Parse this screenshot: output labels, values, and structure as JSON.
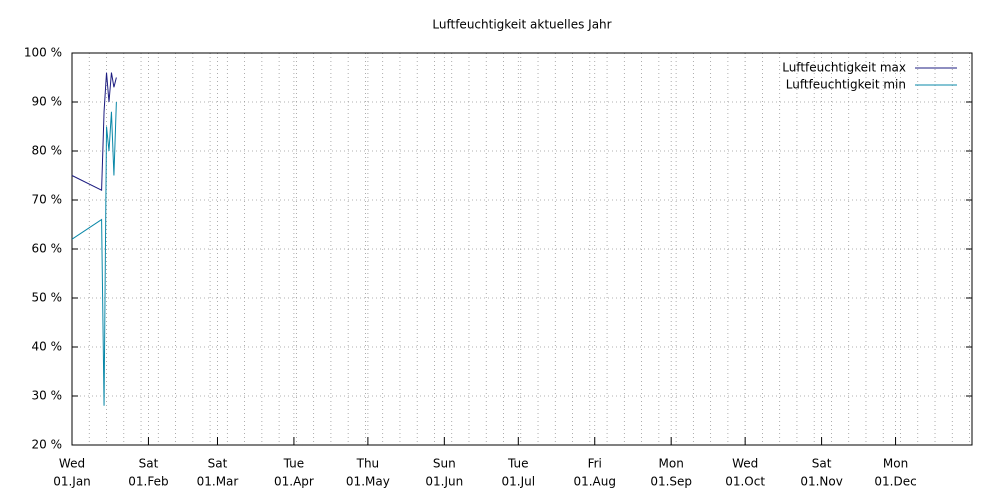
{
  "chart_data": {
    "type": "line",
    "title": "Luftfeuchtigkeit aktuelles Jahr",
    "x": [
      "2025-01-01",
      "2025-01-13",
      "2025-01-14",
      "2025-01-15",
      "2025-01-16",
      "2025-01-17",
      "2025-01-18",
      "2025-01-19"
    ],
    "series": [
      {
        "name": "Luftfeuchtigkeit max",
        "color": "#1c1c80",
        "values": [
          75,
          72,
          88,
          96,
          90,
          96,
          93,
          95
        ]
      },
      {
        "name": "Luftfeuchtigkeit min",
        "color": "#0a88a8",
        "values": [
          62,
          66,
          28,
          85,
          80,
          88,
          75,
          90
        ]
      }
    ],
    "xlim": [
      "2025-01-01",
      "2026-01-01"
    ],
    "xticks": [
      {
        "value": "2025-01-01",
        "label": [
          "Wed",
          "01.Jan"
        ]
      },
      {
        "value": "2025-02-01",
        "label": [
          "Sat",
          "01.Feb"
        ]
      },
      {
        "value": "2025-03-01",
        "label": [
          "Sat",
          "01.Mar"
        ]
      },
      {
        "value": "2025-04-01",
        "label": [
          "Tue",
          "01.Apr"
        ]
      },
      {
        "value": "2025-05-01",
        "label": [
          "Thu",
          "01.May"
        ]
      },
      {
        "value": "2025-06-01",
        "label": [
          "Sun",
          "01.Jun"
        ]
      },
      {
        "value": "2025-07-01",
        "label": [
          "Tue",
          "01.Jul"
        ]
      },
      {
        "value": "2025-08-01",
        "label": [
          "Fri",
          "01.Aug"
        ]
      },
      {
        "value": "2025-09-01",
        "label": [
          "Mon",
          "01.Sep"
        ]
      },
      {
        "value": "2025-10-01",
        "label": [
          "Wed",
          "01.Oct"
        ]
      },
      {
        "value": "2025-11-01",
        "label": [
          "Sat",
          "01.Nov"
        ]
      },
      {
        "value": "2025-12-01",
        "label": [
          "Mon",
          "01.Dec"
        ]
      }
    ],
    "ylim": [
      20,
      100
    ],
    "yticks": [
      {
        "value": 20,
        "label": "20 %"
      },
      {
        "value": 30,
        "label": "30 %"
      },
      {
        "value": 40,
        "label": "40 %"
      },
      {
        "value": 50,
        "label": "50 %"
      },
      {
        "value": 60,
        "label": "60 %"
      },
      {
        "value": 70,
        "label": "70 %"
      },
      {
        "value": 80,
        "label": "80 %"
      },
      {
        "value": 90,
        "label": "90 %"
      },
      {
        "value": 100,
        "label": "100 %"
      }
    ],
    "grid": true,
    "minor_grid_days": 7,
    "legend": "upper right"
  }
}
